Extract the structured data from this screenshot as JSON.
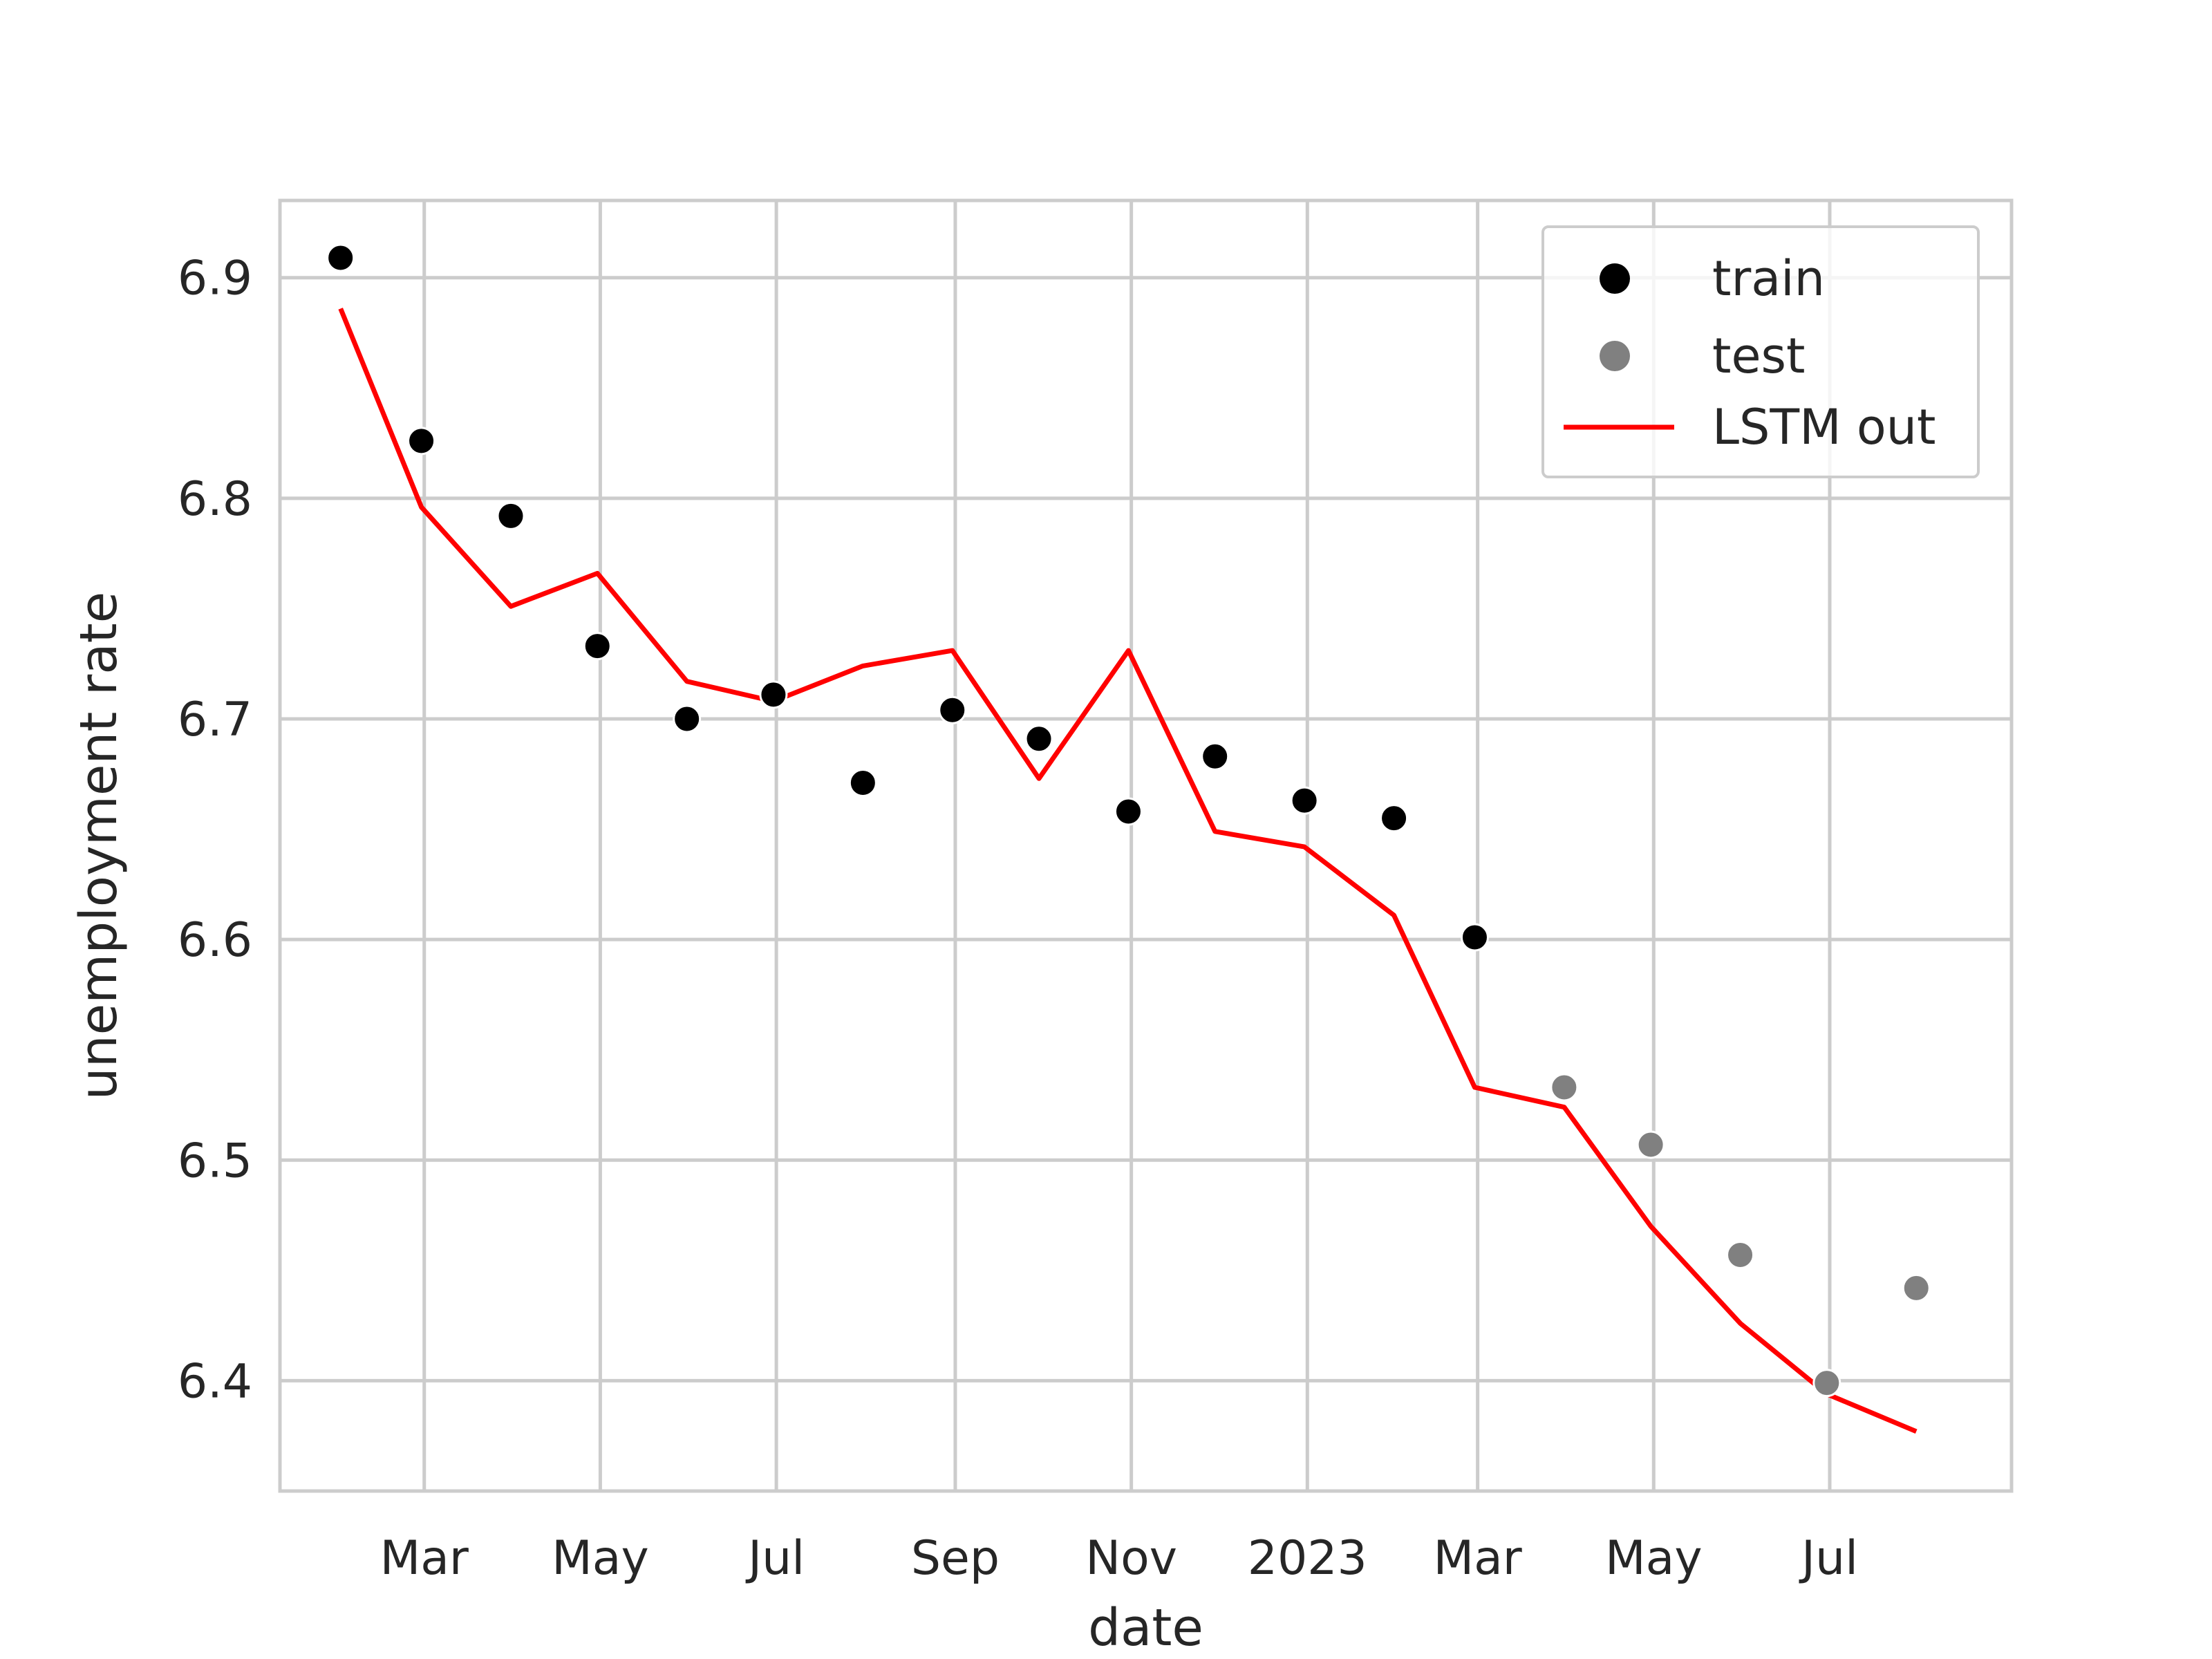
{
  "chart_data": {
    "type": "scatter",
    "title": "",
    "xlabel": "date",
    "ylabel": "unemployment rate",
    "grid": true,
    "legend_position": "top-right",
    "ylim": [
      6.35,
      6.935
    ],
    "xlim": [
      "2022-01-10",
      "2023-09-02"
    ],
    "yticks": [
      "6.4",
      "6.5",
      "6.6",
      "6.7",
      "6.8",
      "6.9"
    ],
    "xticks": [
      {
        "date": "2022-03-01",
        "label": "Mar"
      },
      {
        "date": "2022-05-01",
        "label": "May"
      },
      {
        "date": "2022-07-01",
        "label": "Jul"
      },
      {
        "date": "2022-09-01",
        "label": "Sep"
      },
      {
        "date": "2022-11-01",
        "label": "Nov"
      },
      {
        "date": "2023-01-01",
        "label": "2023"
      },
      {
        "date": "2023-03-01",
        "label": "Mar"
      },
      {
        "date": "2023-05-01",
        "label": "May"
      },
      {
        "date": "2023-07-01",
        "label": "Jul"
      }
    ],
    "series": [
      {
        "name": "train",
        "kind": "scatter",
        "color": "#000000",
        "points": [
          {
            "x": "2022-01-31",
            "y": 6.909
          },
          {
            "x": "2022-02-28",
            "y": 6.826
          },
          {
            "x": "2022-03-31",
            "y": 6.792
          },
          {
            "x": "2022-04-30",
            "y": 6.733
          },
          {
            "x": "2022-05-31",
            "y": 6.7
          },
          {
            "x": "2022-06-30",
            "y": 6.711
          },
          {
            "x": "2022-07-31",
            "y": 6.671
          },
          {
            "x": "2022-08-31",
            "y": 6.704
          },
          {
            "x": "2022-09-30",
            "y": 6.691
          },
          {
            "x": "2022-10-31",
            "y": 6.658
          },
          {
            "x": "2022-11-30",
            "y": 6.683
          },
          {
            "x": "2022-12-31",
            "y": 6.663
          },
          {
            "x": "2023-01-31",
            "y": 6.655
          },
          {
            "x": "2023-02-28",
            "y": 6.601
          }
        ]
      },
      {
        "name": "test",
        "kind": "scatter",
        "color": "#808080",
        "points": [
          {
            "x": "2023-03-31",
            "y": 6.533
          },
          {
            "x": "2023-04-30",
            "y": 6.507
          },
          {
            "x": "2023-05-31",
            "y": 6.457
          },
          {
            "x": "2023-06-30",
            "y": 6.399
          },
          {
            "x": "2023-07-31",
            "y": 6.442
          }
        ]
      },
      {
        "name": "LSTM out",
        "kind": "line",
        "color": "#ff0000",
        "points": [
          {
            "x": "2022-01-31",
            "y": 6.886
          },
          {
            "x": "2022-02-28",
            "y": 6.796
          },
          {
            "x": "2022-03-31",
            "y": 6.751
          },
          {
            "x": "2022-04-30",
            "y": 6.766
          },
          {
            "x": "2022-05-31",
            "y": 6.717
          },
          {
            "x": "2022-06-30",
            "y": 6.708
          },
          {
            "x": "2022-07-31",
            "y": 6.724
          },
          {
            "x": "2022-08-31",
            "y": 6.731
          },
          {
            "x": "2022-09-30",
            "y": 6.673
          },
          {
            "x": "2022-10-31",
            "y": 6.731
          },
          {
            "x": "2022-11-30",
            "y": 6.649
          },
          {
            "x": "2022-12-31",
            "y": 6.642
          },
          {
            "x": "2023-01-31",
            "y": 6.611
          },
          {
            "x": "2023-02-28",
            "y": 6.533
          },
          {
            "x": "2023-03-31",
            "y": 6.524
          },
          {
            "x": "2023-04-30",
            "y": 6.47
          },
          {
            "x": "2023-05-31",
            "y": 6.426
          },
          {
            "x": "2023-06-30",
            "y": 6.394
          },
          {
            "x": "2023-07-31",
            "y": 6.377
          }
        ]
      }
    ]
  }
}
